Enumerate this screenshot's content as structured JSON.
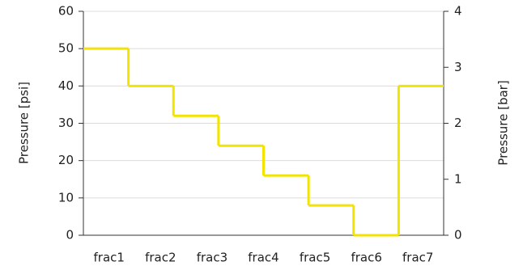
{
  "chart_data": {
    "type": "step",
    "x": [
      0,
      1,
      2,
      3,
      4,
      5,
      6,
      7
    ],
    "xlim": [
      0,
      8
    ],
    "xticks": [
      {
        "value": 0.571,
        "label": "frac1"
      },
      {
        "value": 1.714,
        "label": "frac2"
      },
      {
        "value": 2.857,
        "label": "frac3"
      },
      {
        "value": 4,
        "label": "frac4"
      },
      {
        "value": 5.143,
        "label": "frac5"
      },
      {
        "value": 6.286,
        "label": "frac6"
      },
      {
        "value": 7.429,
        "label": "frac7"
      }
    ],
    "series": [
      {
        "color": "#f2e300",
        "values": [
          50,
          40,
          32,
          24,
          16,
          8,
          0,
          40
        ]
      }
    ],
    "ylabel": "Pressure [psi]",
    "ylim": [
      0,
      60
    ],
    "yticks": [
      0,
      10,
      20,
      30,
      40,
      50,
      60
    ],
    "y2label": "Pressure [bar]",
    "y2lim": [
      0,
      4
    ],
    "y2ticks": [
      0,
      1,
      2,
      3,
      4
    ],
    "grid": true
  }
}
